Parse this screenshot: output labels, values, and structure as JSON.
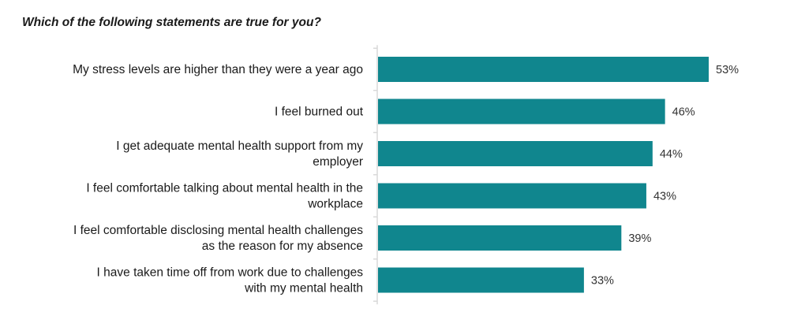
{
  "chart_data": {
    "type": "bar",
    "orientation": "horizontal",
    "title": "Which of the following statements are true for you?",
    "categories": [
      [
        "My stress levels are higher than they were a year ago"
      ],
      [
        "I feel burned out"
      ],
      [
        "I get adequate mental health support from my",
        "employer"
      ],
      [
        "I feel comfortable talking about mental health in the",
        "workplace"
      ],
      [
        "I feel comfortable disclosing mental health challenges",
        "as the reason for my absence"
      ],
      [
        "I have taken time off from work due to challenges",
        "with my mental health"
      ]
    ],
    "values": [
      53,
      46,
      44,
      43,
      39,
      33
    ],
    "value_labels": [
      "53%",
      "46%",
      "44%",
      "43%",
      "39%",
      "33%"
    ],
    "unit": "%",
    "xlim": [
      0,
      53
    ],
    "grid": false,
    "legend": "none",
    "bar_color": "#10868e",
    "axis_color": "#d9d9d9"
  }
}
